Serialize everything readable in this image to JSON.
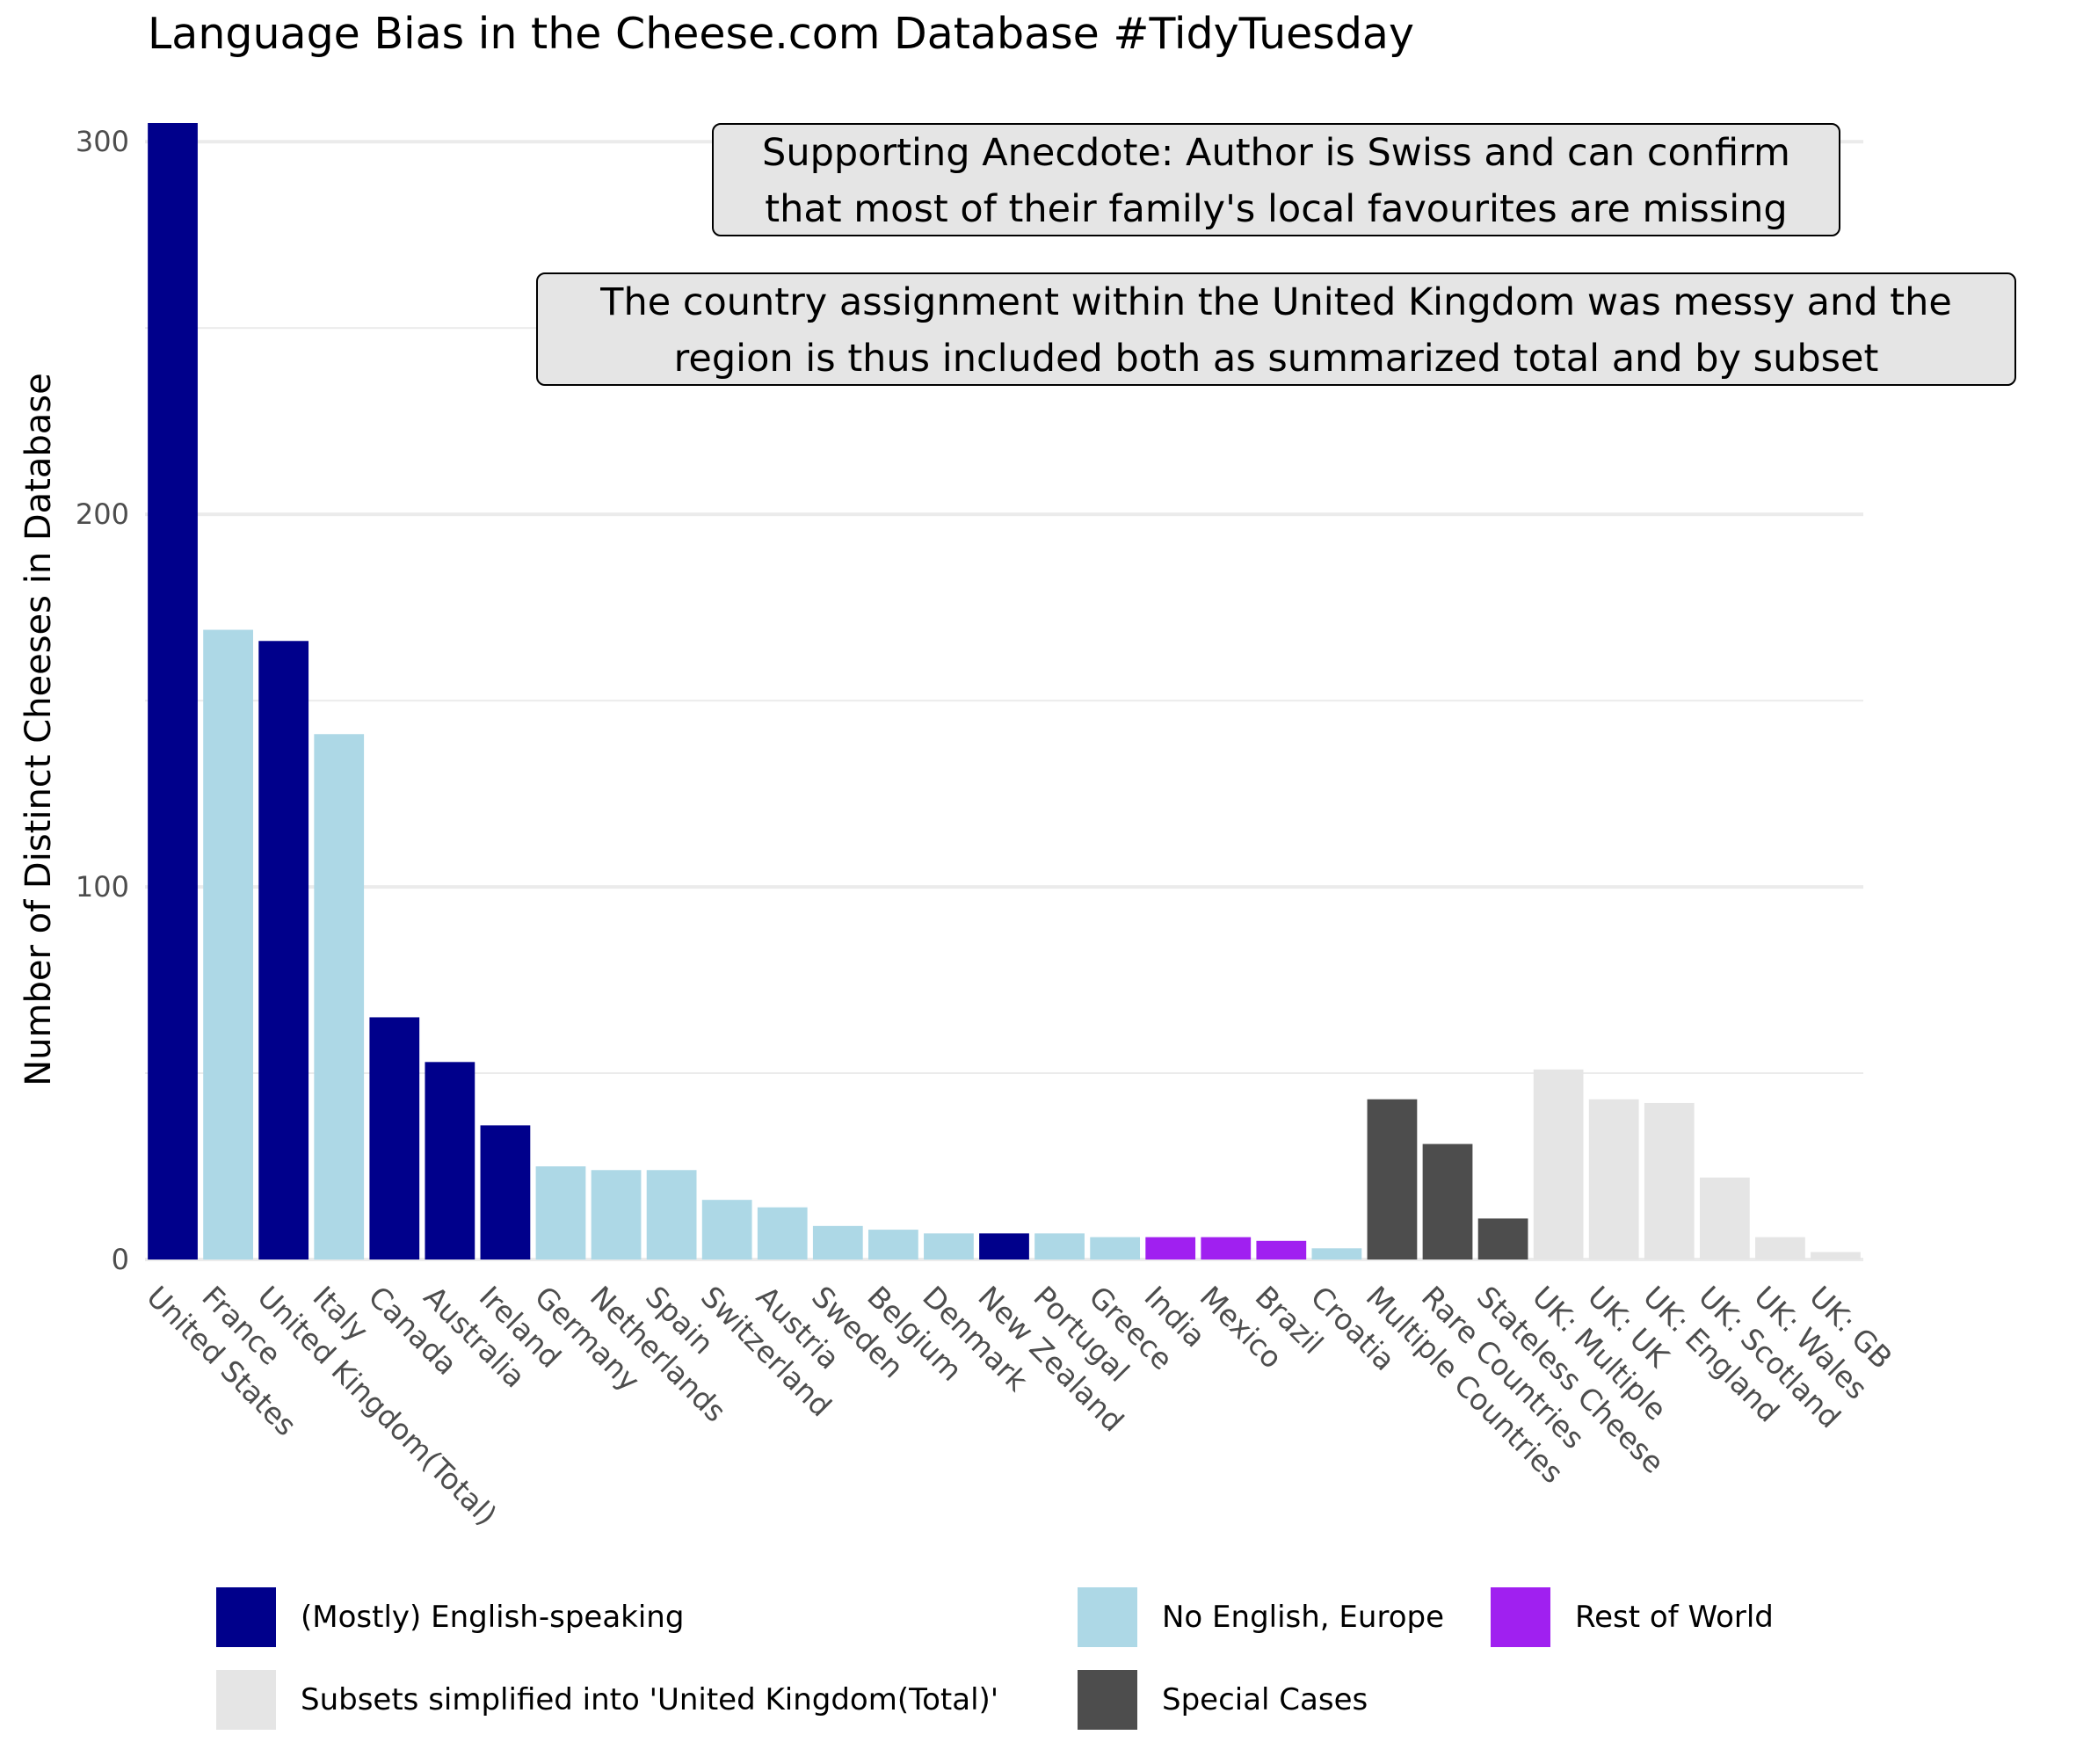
{
  "title": "Language Bias in the Cheese.com Database #TidyTuesday",
  "colors": {
    "english": "#00008B",
    "europe": "#ADD8E6",
    "rest": "#A020F0",
    "uk_subset": "#E5E5E5",
    "special": "#4D4D4D",
    "grid": "#EBEBEB",
    "tick_text": "#4D4D4D"
  },
  "annotations": [
    {
      "lines": [
        "Supporting Anecdote: Author is Swiss and can confirm",
        "that most of their family's local favourites are missing"
      ]
    },
    {
      "lines": [
        "The country assignment within the United Kingdom was messy and the",
        "region is thus included both as summarized total and by subset"
      ]
    }
  ],
  "legend": [
    {
      "label": "(Mostly) English-speaking",
      "color": "#00008B"
    },
    {
      "label": "No English, Europe",
      "color": "#ADD8E6"
    },
    {
      "label": "Rest of World",
      "color": "#A020F0"
    },
    {
      "label": "Subsets simplified into 'United Kingdom(Total)'",
      "color": "#E5E5E5"
    },
    {
      "label": "Special Cases",
      "color": "#4D4D4D"
    }
  ],
  "chart_data": {
    "type": "bar",
    "title": "Language Bias in the Cheese.com Database #TidyTuesday",
    "xlabel": "",
    "ylabel": "Number of Distinct Cheeses in Database",
    "ylim": [
      0,
      305
    ],
    "yticks": [
      0,
      100,
      200,
      300
    ],
    "grid": true,
    "legend_position": "bottom",
    "categories": [
      "United States",
      "France",
      "United Kingdom(Total)",
      "Italy",
      "Canada",
      "Australia",
      "Ireland",
      "Germany",
      "Netherlands",
      "Spain",
      "Switzerland",
      "Austria",
      "Sweden",
      "Belgium",
      "Denmark",
      "New Zealand",
      "Portugal",
      "Greece",
      "India",
      "Mexico",
      "Brazil",
      "Croatia",
      "Multiple Countries",
      "Rare Countries",
      "Stateless Cheese",
      "UK: Multiple",
      "UK: UK",
      "UK: England",
      "UK: Scotland",
      "UK: Wales",
      "UK: GB"
    ],
    "values": [
      305,
      169,
      166,
      141,
      65,
      53,
      36,
      25,
      24,
      24,
      16,
      14,
      9,
      8,
      7,
      7,
      7,
      6,
      6,
      6,
      5,
      3,
      43,
      31,
      11,
      51,
      43,
      42,
      22,
      6,
      2
    ],
    "groups": [
      "english",
      "europe",
      "english",
      "europe",
      "english",
      "english",
      "english",
      "europe",
      "europe",
      "europe",
      "europe",
      "europe",
      "europe",
      "europe",
      "europe",
      "english",
      "europe",
      "europe",
      "rest",
      "rest",
      "rest",
      "europe",
      "special",
      "special",
      "special",
      "uk_subset",
      "uk_subset",
      "uk_subset",
      "uk_subset",
      "uk_subset",
      "uk_subset"
    ]
  }
}
